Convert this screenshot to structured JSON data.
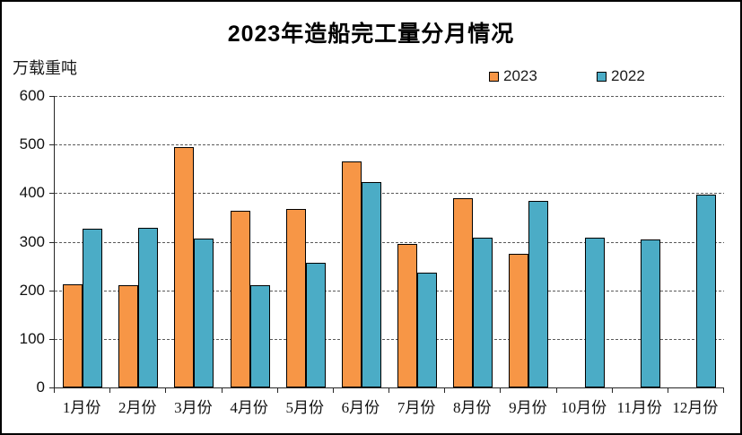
{
  "title": "2023年造船完工量分月情况",
  "y_axis_unit": "万载重吨",
  "legend": {
    "items": [
      {
        "label": "2023",
        "color": "#F79646"
      },
      {
        "label": "2022",
        "color": "#4BACC6"
      }
    ]
  },
  "chart_data": {
    "type": "bar",
    "title": "2023年造船完工量分月情况",
    "xlabel": "",
    "ylabel": "万载重吨",
    "categories": [
      "1月份",
      "2月份",
      "3月份",
      "4月份",
      "5月份",
      "6月份",
      "7月份",
      "8月份",
      "9月份",
      "10月份",
      "11月份",
      "12月份"
    ],
    "series": [
      {
        "name": "2023",
        "color": "#F79646",
        "values": [
          212,
          211,
          494,
          363,
          367,
          466,
          296,
          389,
          275,
          null,
          null,
          null
        ]
      },
      {
        "name": "2022",
        "color": "#4BACC6",
        "values": [
          326,
          328,
          307,
          210,
          257,
          423,
          236,
          309,
          385,
          308,
          304,
          397
        ]
      }
    ],
    "ylim": [
      0,
      600
    ],
    "ytick_interval": 100,
    "grid": "horizontal-dashed",
    "legend_position": "top-right-inside"
  }
}
